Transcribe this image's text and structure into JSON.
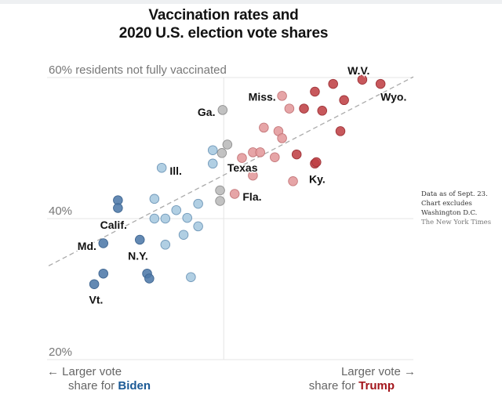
{
  "chart_data": {
    "type": "scatter",
    "title": "Vaccination rates and 2020 U.S. election vote shares",
    "title_lines": [
      "Vaccination rates and",
      "2020 U.S. election vote shares"
    ],
    "ylabel": "residents not fully vaccinated",
    "y_ticks": [
      {
        "value": 60,
        "label": "60% residents not fully vaccinated"
      },
      {
        "value": 40,
        "label": "40%"
      },
      {
        "value": 20,
        "label": "20%"
      }
    ],
    "ylim": [
      20,
      60
    ],
    "x_axis": {
      "description": "Vote share margin (negative = Biden, positive = Trump)",
      "xlim": [
        -48,
        52
      ],
      "center_value": 0,
      "left_label": {
        "arrow": "←",
        "line1": "Larger vote",
        "line2_prefix": "share for ",
        "line2_highlight": "Biden"
      },
      "right_label": {
        "arrow": "→",
        "line1": "Larger vote",
        "line2_prefix": "share for ",
        "line2_highlight": "Trump"
      }
    },
    "grid": true,
    "trendline": {
      "style": "dashed",
      "from": {
        "x": -48,
        "y": 33.3
      },
      "to": {
        "x": 52,
        "y": 60.1
      }
    },
    "colors": {
      "biden_strong": "#4d79a8",
      "biden_lean": "#a6c8df",
      "tossup": "#b9b9b9",
      "trump_lean": "#e3999b",
      "trump_strong": "#bf4146",
      "biden_text": "#1b5a96",
      "trump_text": "#a3151b"
    },
    "points": [
      {
        "label": "W.V.",
        "x": 38,
        "y": 59.7,
        "group": "trump_strong"
      },
      {
        "label": "Wyo.",
        "x": 43,
        "y": 59.1,
        "group": "trump_strong"
      },
      {
        "label": "",
        "x": 30,
        "y": 59.1,
        "group": "trump_strong"
      },
      {
        "label": "",
        "x": 25,
        "y": 58.0,
        "group": "trump_strong"
      },
      {
        "label": "",
        "x": 33,
        "y": 56.8,
        "group": "trump_strong"
      },
      {
        "label": "",
        "x": 22,
        "y": 55.6,
        "group": "trump_strong"
      },
      {
        "label": "",
        "x": 27,
        "y": 55.3,
        "group": "trump_strong"
      },
      {
        "label": "",
        "x": 32,
        "y": 52.4,
        "group": "trump_strong"
      },
      {
        "label": "",
        "x": 20,
        "y": 49.1,
        "group": "trump_strong"
      },
      {
        "label": "Ky.",
        "x": 25,
        "y": 47.8,
        "group": "trump_strong"
      },
      {
        "label": "",
        "x": 25.4,
        "y": 48.0,
        "group": "trump_strong"
      },
      {
        "label": "Miss.",
        "x": 16,
        "y": 57.4,
        "group": "trump_lean"
      },
      {
        "label": "",
        "x": 18,
        "y": 55.6,
        "group": "trump_lean"
      },
      {
        "label": "",
        "x": 11,
        "y": 52.9,
        "group": "trump_lean"
      },
      {
        "label": "",
        "x": 15,
        "y": 52.4,
        "group": "trump_lean"
      },
      {
        "label": "",
        "x": 16,
        "y": 51.4,
        "group": "trump_lean"
      },
      {
        "label": "",
        "x": 8,
        "y": 49.4,
        "group": "trump_lean"
      },
      {
        "label": "",
        "x": 10,
        "y": 49.4,
        "group": "trump_lean"
      },
      {
        "label": "",
        "x": 14,
        "y": 48.7,
        "group": "trump_lean"
      },
      {
        "label": "",
        "x": 5,
        "y": 48.6,
        "group": "trump_lean"
      },
      {
        "label": "",
        "x": 8,
        "y": 46.1,
        "group": "trump_lean"
      },
      {
        "label": "",
        "x": 19,
        "y": 45.3,
        "group": "trump_lean"
      },
      {
        "label": "Fla.",
        "x": 3,
        "y": 43.5,
        "group": "trump_lean"
      },
      {
        "label": "Ga.",
        "x": -0.3,
        "y": 55.4,
        "group": "tossup"
      },
      {
        "label": "",
        "x": 1,
        "y": 50.5,
        "group": "tossup"
      },
      {
        "label": "Texas",
        "x": -0.5,
        "y": 49.3,
        "group": "tossup"
      },
      {
        "label": "",
        "x": -1,
        "y": 44.0,
        "group": "tossup"
      },
      {
        "label": "",
        "x": -1,
        "y": 42.5,
        "group": "tossup"
      },
      {
        "label": "",
        "x": -3,
        "y": 49.7,
        "group": "biden_lean"
      },
      {
        "label": "",
        "x": -3,
        "y": 47.8,
        "group": "biden_lean"
      },
      {
        "label": "Ill.",
        "x": -17,
        "y": 47.2,
        "group": "biden_lean"
      },
      {
        "label": "",
        "x": -7,
        "y": 42.1,
        "group": "biden_lean"
      },
      {
        "label": "",
        "x": -19,
        "y": 42.8,
        "group": "biden_lean"
      },
      {
        "label": "",
        "x": -13,
        "y": 41.2,
        "group": "biden_lean"
      },
      {
        "label": "",
        "x": -10,
        "y": 40.1,
        "group": "biden_lean"
      },
      {
        "label": "",
        "x": -19,
        "y": 40.0,
        "group": "biden_lean"
      },
      {
        "label": "",
        "x": -16,
        "y": 40.0,
        "group": "biden_lean"
      },
      {
        "label": "",
        "x": -7,
        "y": 38.9,
        "group": "biden_lean"
      },
      {
        "label": "",
        "x": -11,
        "y": 37.7,
        "group": "biden_lean"
      },
      {
        "label": "",
        "x": -16,
        "y": 36.3,
        "group": "biden_lean"
      },
      {
        "label": "",
        "x": -9,
        "y": 31.7,
        "group": "biden_lean"
      },
      {
        "label": "",
        "x": -29,
        "y": 42.6,
        "group": "biden_strong"
      },
      {
        "label": "Calif.",
        "x": -29,
        "y": 41.5,
        "group": "biden_strong"
      },
      {
        "label": "N.Y.",
        "x": -23,
        "y": 37.0,
        "group": "biden_strong"
      },
      {
        "label": "Md.",
        "x": -33,
        "y": 36.5,
        "group": "biden_strong"
      },
      {
        "label": "",
        "x": -33,
        "y": 32.2,
        "group": "biden_strong"
      },
      {
        "label": "",
        "x": -21,
        "y": 32.2,
        "group": "biden_strong"
      },
      {
        "label": "",
        "x": -20.4,
        "y": 31.5,
        "group": "biden_strong"
      },
      {
        "label": "Vt.",
        "x": -35.5,
        "y": 30.7,
        "group": "biden_strong"
      }
    ],
    "annotations": [
      {
        "text": "W.V.",
        "x": 37,
        "y": 61.0,
        "anchor": "middle"
      },
      {
        "text": "Wyo.",
        "x": 43,
        "y": 57.3,
        "anchor": "start"
      },
      {
        "text": "Miss.",
        "x": 14.3,
        "y": 57.3,
        "anchor": "end"
      },
      {
        "text": "Ga.",
        "x": -2.3,
        "y": 55.1,
        "anchor": "end"
      },
      {
        "text": "Texas",
        "x": 1,
        "y": 47.2,
        "anchor": "start"
      },
      {
        "text": "Ky.",
        "x": 23.4,
        "y": 45.6,
        "anchor": "start"
      },
      {
        "text": "Ill.",
        "x": -14.8,
        "y": 46.8,
        "anchor": "start"
      },
      {
        "text": "Fla.",
        "x": 5.2,
        "y": 43.1,
        "anchor": "start"
      },
      {
        "text": "Calif.",
        "x": -30.2,
        "y": 39.1,
        "anchor": "middle"
      },
      {
        "text": "Md.",
        "x": -34.9,
        "y": 36.1,
        "anchor": "end"
      },
      {
        "text": "N.Y.",
        "x": -23.5,
        "y": 34.7,
        "anchor": "middle"
      },
      {
        "text": "Vt.",
        "x": -35,
        "y": 28.5,
        "anchor": "middle"
      }
    ]
  },
  "notes": {
    "line1": "Data as of Sept. 23.",
    "line2": "Chart excludes",
    "line3": "Washington D.C.",
    "source": "The New York Times"
  }
}
